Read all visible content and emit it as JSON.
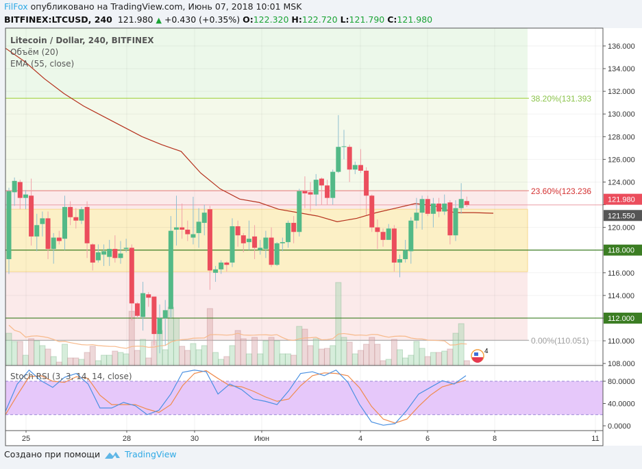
{
  "header": {
    "user": "FilFox",
    "published": "опубликовано на TradingView.com, Июнь 07, 2018 10:01 MSK",
    "symbol": "BITFINEX:LTCUSD, 240",
    "last": "121.980",
    "change": "+0.430 (+0.35%)",
    "o_label": "O:",
    "o": "122.320",
    "h_label": "H:",
    "h": "122.720",
    "l_label": "L:",
    "l": "121.790",
    "c_label": "C:",
    "c": "121.980"
  },
  "legend": {
    "title": "Litecoin / Dollar, 240, BITFINEX",
    "volume": "Объём (20)",
    "ema": "EMA (55, close)",
    "stoch": "Stoch RSI (3, 3, 14, 14, close)"
  },
  "footer": {
    "created": "Создано при помощи",
    "brand": "TradingView"
  },
  "colors": {
    "up": "#53b987",
    "down": "#eb4d5c",
    "ema": "#b5301c",
    "stoch_k": "#4a90e2",
    "stoch_d": "#f08a4b",
    "level_line": "#3b7d23"
  },
  "chart_data": [
    {
      "type": "candlestick",
      "ylim": [
        108,
        137
      ],
      "y_ticks": [
        "136.000",
        "134.000",
        "132.000",
        "130.000",
        "128.000",
        "126.000",
        "124.000",
        "122.000",
        "120.000",
        "118.000",
        "116.000",
        "114.000",
        "112.000",
        "110.000",
        "108.000"
      ],
      "x_ticks": [
        "25",
        "28",
        "30",
        "Июн",
        "4",
        "6",
        "8",
        "11"
      ],
      "ohlc": [
        [
          117.2,
          123.5,
          115.9,
          123.2
        ],
        [
          123.1,
          124.4,
          121.9,
          124.1
        ],
        [
          124.0,
          124.2,
          121.6,
          122.6
        ],
        [
          122.6,
          123.3,
          121.6,
          122.9
        ],
        [
          122.8,
          124.3,
          118.4,
          119.2
        ],
        [
          119.2,
          121.2,
          117.9,
          120.2
        ],
        [
          120.3,
          121.4,
          119.2,
          120.8
        ],
        [
          120.8,
          121.4,
          117.2,
          118.1
        ],
        [
          118.1,
          119.5,
          116.8,
          119.1
        ],
        [
          119.1,
          119.7,
          118.5,
          118.8
        ],
        [
          119.0,
          122.8,
          118.0,
          121.8
        ],
        [
          121.8,
          122.3,
          120.2,
          120.9
        ],
        [
          120.9,
          121.7,
          119.9,
          120.6
        ],
        [
          120.6,
          121.8,
          120.3,
          121.6
        ],
        [
          121.8,
          122.3,
          117.3,
          118.6
        ],
        [
          118.5,
          118.6,
          116.2,
          116.9
        ],
        [
          117.1,
          118.5,
          116.9,
          117.8
        ],
        [
          117.6,
          118.5,
          116.6,
          117.9
        ],
        [
          117.4,
          118.9,
          116.6,
          118.1
        ],
        [
          118.1,
          119.3,
          116.9,
          117.3
        ],
        [
          117.3,
          118.8,
          116.8,
          117.7
        ],
        [
          118.1,
          119.0,
          117.8,
          118.2
        ],
        [
          118.2,
          118.5,
          111.8,
          113.3
        ],
        [
          113.3,
          113.4,
          112.0,
          112.2
        ],
        [
          112.1,
          115.2,
          110.9,
          114.2
        ],
        [
          114.1,
          114.3,
          113.0,
          113.8
        ],
        [
          113.9,
          113.9,
          109.6,
          110.6
        ],
        [
          110.6,
          113.2,
          108.9,
          112.0
        ],
        [
          112.0,
          113.6,
          109.6,
          112.7
        ],
        [
          112.8,
          121.0,
          112.0,
          119.7
        ],
        [
          119.8,
          122.8,
          118.4,
          120.0
        ],
        [
          120.0,
          122.1,
          119.0,
          119.8
        ],
        [
          119.8,
          120.6,
          118.8,
          119.4
        ],
        [
          119.1,
          122.7,
          118.5,
          119.4
        ],
        [
          119.5,
          121.7,
          118.2,
          120.5
        ],
        [
          120.4,
          122.0,
          119.3,
          121.3
        ],
        [
          121.6,
          121.9,
          114.5,
          116.2
        ],
        [
          116.0,
          116.6,
          115.2,
          116.3
        ],
        [
          116.3,
          117.1,
          115.9,
          116.9
        ],
        [
          116.9,
          117.0,
          116.1,
          116.7
        ],
        [
          116.9,
          120.8,
          116.5,
          120.1
        ],
        [
          120.1,
          120.6,
          118.3,
          119.3
        ],
        [
          119.3,
          119.5,
          117.8,
          118.6
        ],
        [
          118.7,
          120.6,
          118.0,
          119.0
        ],
        [
          119.2,
          120.2,
          117.2,
          118.2
        ],
        [
          118.0,
          118.9,
          117.6,
          118.2
        ],
        [
          118.1,
          119.7,
          117.3,
          119.1
        ],
        [
          119.1,
          120.0,
          116.5,
          116.7
        ],
        [
          116.7,
          118.7,
          116.6,
          118.6
        ],
        [
          118.6,
          119.1,
          117.9,
          118.7
        ],
        [
          118.7,
          120.6,
          118.2,
          120.4
        ],
        [
          120.4,
          121.0,
          118.6,
          119.6
        ],
        [
          119.6,
          123.4,
          119.2,
          123.2
        ],
        [
          123.2,
          124.5,
          121.7,
          123.0
        ],
        [
          123.1,
          124.0,
          121.4,
          122.9
        ],
        [
          122.9,
          124.7,
          121.9,
          124.2
        ],
        [
          124.3,
          124.4,
          122.0,
          123.7
        ],
        [
          123.7,
          124.2,
          122.0,
          122.6
        ],
        [
          122.6,
          125.1,
          122.0,
          124.9
        ],
        [
          124.9,
          129.9,
          124.8,
          127.1
        ],
        [
          127.1,
          128.6,
          126.0,
          127.15
        ],
        [
          127.1,
          127.3,
          124.0,
          125.1
        ],
        [
          125.1,
          125.8,
          124.7,
          125.5
        ],
        [
          125.5,
          126.9,
          124.8,
          125.0
        ],
        [
          125.0,
          125.3,
          121.1,
          122.8
        ],
        [
          122.8,
          122.9,
          119.6,
          120.0
        ],
        [
          120.0,
          120.7,
          118.1,
          119.6
        ],
        [
          119.6,
          119.9,
          118.3,
          118.9
        ],
        [
          118.9,
          120.3,
          118.9,
          119.9
        ],
        [
          119.9,
          120.2,
          116.1,
          116.9
        ],
        [
          116.9,
          117.6,
          115.6,
          117.2
        ],
        [
          117.2,
          118.9,
          116.9,
          118.0
        ],
        [
          117.9,
          120.9,
          116.8,
          120.6
        ],
        [
          120.6,
          122.6,
          119.9,
          121.3
        ],
        [
          121.3,
          122.8,
          119.8,
          122.5
        ],
        [
          122.5,
          122.8,
          121.0,
          121.2
        ],
        [
          121.2,
          122.6,
          120.0,
          122.1
        ],
        [
          122.1,
          122.6,
          120.9,
          121.4
        ],
        [
          121.4,
          122.9,
          121.1,
          122.1
        ],
        [
          122.2,
          122.4,
          118.5,
          119.3
        ],
        [
          119.3,
          122.4,
          118.8,
          121.7
        ],
        [
          121.7,
          123.9,
          121.2,
          122.5
        ],
        [
          122.32,
          122.72,
          121.79,
          121.98
        ]
      ],
      "volume_relative": [
        47,
        35,
        35,
        15,
        39,
        36,
        29,
        24,
        13,
        5,
        31,
        11,
        11,
        9,
        19,
        28,
        7,
        15,
        15,
        21,
        19,
        17,
        79,
        22,
        38,
        11,
        35,
        51,
        23,
        85,
        69,
        28,
        22,
        32,
        23,
        29,
        83,
        19,
        9,
        13,
        29,
        51,
        39,
        17,
        41,
        17,
        36,
        41,
        36,
        17,
        17,
        15,
        57,
        53,
        29,
        39,
        24,
        25,
        29,
        121,
        41,
        34,
        17,
        22,
        31,
        41,
        31,
        7,
        9,
        38,
        23,
        11,
        15,
        35,
        25,
        13,
        19,
        19,
        21,
        24,
        47,
        61,
        7
      ],
      "ema55": [
        135.8,
        134.6,
        133.1,
        131.8,
        130.7,
        129.8,
        128.9,
        128.0,
        127.3,
        126.7,
        124.8,
        123.4,
        122.5,
        122.2,
        121.6,
        121.3,
        121.0,
        120.5,
        120.8,
        121.3,
        121.7,
        122.1,
        121.9,
        121.3,
        121.3,
        121.25
      ],
      "price_labels": {
        "last": "121.980",
        "ema": "121.550",
        "level1": "118.000",
        "level2": "112.000"
      },
      "horizontal_levels": [
        118,
        112
      ],
      "fib": [
        {
          "label": "38.20%(131.393",
          "value": 131.393
        },
        {
          "label": "23.60%(123.236",
          "value": 123.236
        },
        {
          "label": "0.00%(110.051)",
          "value": 110.051
        }
      ],
      "zone": [
        116.1,
        121.6
      ]
    },
    {
      "type": "line",
      "name": "Stoch RSI (3, 3, 14, 14, close)",
      "ylim": [
        0,
        100
      ],
      "y_ticks": [
        "80.0000",
        "40.0000",
        "0.0000"
      ],
      "band": [
        20,
        80
      ],
      "k": [
        26,
        75,
        100,
        81,
        69,
        87,
        94,
        75,
        32,
        32,
        42,
        36,
        20,
        28,
        57,
        96,
        100,
        97,
        57,
        75,
        65,
        48,
        44,
        38,
        63,
        94,
        97,
        90,
        100,
        78,
        38,
        7,
        1,
        4,
        28,
        57,
        69,
        81,
        75,
        90
      ],
      "d": [
        20,
        55,
        88,
        90,
        80,
        78,
        88,
        85,
        55,
        38,
        38,
        38,
        30,
        24,
        38,
        72,
        94,
        99,
        85,
        72,
        70,
        62,
        52,
        44,
        48,
        72,
        90,
        95,
        94,
        90,
        68,
        35,
        12,
        5,
        12,
        35,
        55,
        70,
        76,
        82
      ]
    }
  ]
}
